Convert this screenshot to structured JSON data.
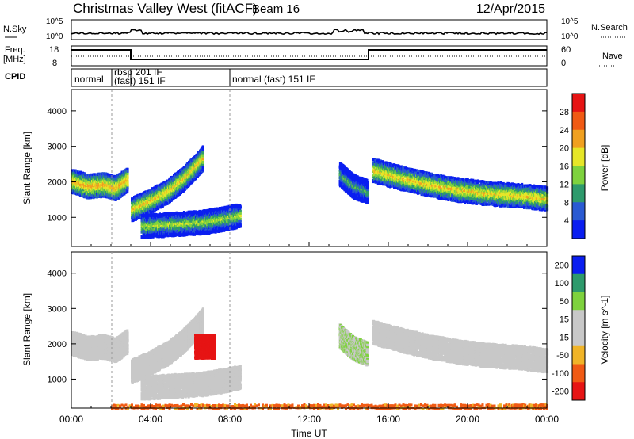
{
  "header": {
    "site": "Christmas Valley West (fitACF)",
    "beam": "Beam 16",
    "date": "12/Apr/2015"
  },
  "top_panels": {
    "nsky_label": "N.Sky",
    "nsky_ticks": [
      "10^5",
      "10^0"
    ],
    "nsearch_label": "N.Search",
    "freq_label_1": "Freq.",
    "freq_label_2": "[MHz]",
    "freq_ticks_left": [
      "18",
      "8"
    ],
    "freq_ticks_right": [
      "60",
      "0"
    ],
    "nave_label": "Nave",
    "cpid_label": "CPID",
    "cpid_segments": [
      "normal",
      "rbsp 201 IF",
      "(fast) 151 IF",
      "normal (fast) 151 IF"
    ]
  },
  "colors": {
    "power_scale": [
      "#0a1ef0",
      "#2a5ad2",
      "#2e9a6c",
      "#7ed23e",
      "#e6e628",
      "#f0a020",
      "#f05a14",
      "#e61414"
    ],
    "velocity_scale": [
      "#0a1ef0",
      "#2e9a6c",
      "#7ed23e",
      "#c8c8c8",
      "#c8c8c8",
      "#f0b428",
      "#f05a14",
      "#e61414"
    ]
  },
  "chart_data": [
    {
      "type": "heatmap",
      "quantity": "Power",
      "ylabel": "Slant Range [km]",
      "colorbar_label": "Power [dB]",
      "colorbar_ticks": [
        "4",
        "8",
        "12",
        "16",
        "20",
        "24",
        "28"
      ],
      "y_ticks": [
        "1000",
        "2000",
        "3000",
        "4000"
      ],
      "ylim": [
        180,
        4600
      ],
      "xlim": [
        0,
        24
      ],
      "features": [
        {
          "t": [
            0.0,
            0.8,
            1.6,
            2.2,
            2.8
          ],
          "range": [
            2050,
            1900,
            1950,
            1850,
            2100
          ],
          "level": 24
        },
        {
          "t": [
            3.0,
            3.8,
            4.8,
            5.6,
            6.3,
            6.6
          ],
          "range": [
            1250,
            1450,
            1750,
            2100,
            2500,
            2700
          ],
          "level": 22
        },
        {
          "t": [
            3.5,
            5.0,
            6.5,
            7.5,
            8.5
          ],
          "range": [
            780,
            830,
            880,
            970,
            1080
          ],
          "level": 18
        },
        {
          "t": [
            13.5,
            14.2,
            14.9
          ],
          "range": [
            2250,
            1900,
            1750
          ],
          "level": 14
        },
        {
          "t": [
            15.2,
            16.5,
            18.0,
            19.5,
            21.0,
            22.5,
            24.0
          ],
          "range": [
            2350,
            2150,
            1950,
            1800,
            1700,
            1650,
            1550
          ],
          "level": 22
        }
      ]
    },
    {
      "type": "heatmap",
      "quantity": "Velocity",
      "ylabel": "Slant Range [km]",
      "xlabel": "Time UT",
      "colorbar_label": "Velocity [m s^-1]",
      "colorbar_ticks": [
        "200",
        "100",
        "50",
        "15",
        "-15",
        "-50",
        "-100",
        "-200"
      ],
      "y_ticks": [
        "1000",
        "2000",
        "3000",
        "4000"
      ],
      "x_ticks": [
        "00:00",
        "04:00",
        "08:00",
        "12:00",
        "16:00",
        "20:00",
        "00:00"
      ],
      "ylim": [
        180,
        4600
      ],
      "xlim": [
        0,
        24
      ],
      "features": [
        {
          "t": [
            0.0,
            0.8,
            1.6,
            2.2,
            2.8
          ],
          "range": [
            2050,
            1900,
            1950,
            1850,
            2100
          ],
          "velocity": 0
        },
        {
          "t": [
            3.0,
            3.8,
            4.8,
            5.6,
            6.3,
            6.6
          ],
          "range": [
            1250,
            1450,
            1750,
            2100,
            2500,
            2700
          ],
          "velocity": 0
        },
        {
          "t": [
            6.2,
            6.7,
            7.2
          ],
          "range": [
            1950,
            1950,
            1950
          ],
          "velocity": -150
        },
        {
          "t": [
            3.5,
            5.0,
            6.5,
            7.5,
            8.5
          ],
          "range": [
            780,
            830,
            880,
            970,
            1080
          ],
          "velocity": 0
        },
        {
          "t": [
            13.5,
            14.2,
            14.9
          ],
          "range": [
            2250,
            1900,
            1750
          ],
          "velocity": 30
        },
        {
          "t": [
            15.2,
            16.5,
            18.0,
            19.5,
            21.0,
            22.5,
            24.0
          ],
          "range": [
            2350,
            2150,
            1950,
            1800,
            1700,
            1650,
            1550
          ],
          "velocity": 0
        },
        {
          "t": [
            2.0,
            6.0,
            10.0,
            14.0,
            18.0,
            22.0,
            24.0
          ],
          "range": [
            250,
            250,
            260,
            250,
            250,
            250,
            250
          ],
          "velocity": -40
        }
      ]
    }
  ]
}
